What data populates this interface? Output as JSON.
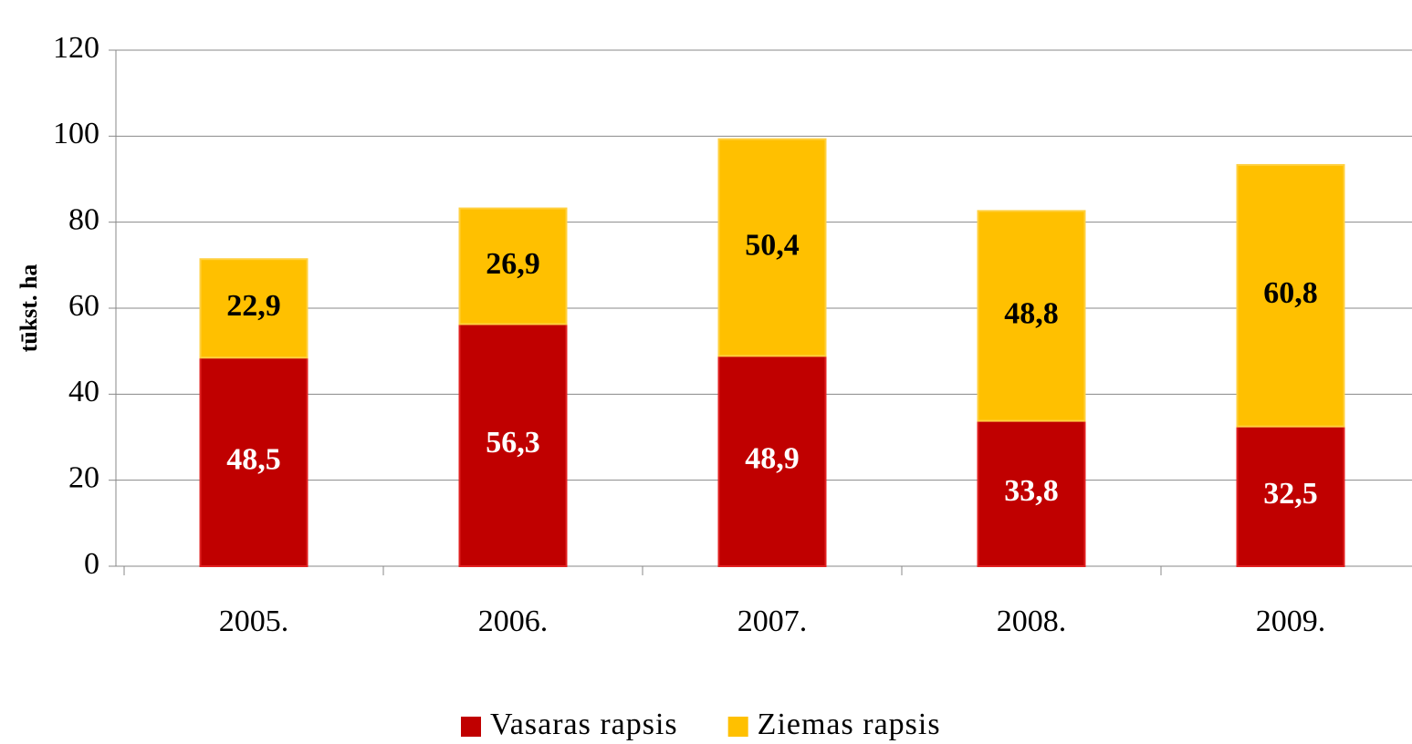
{
  "chart_data": {
    "type": "stacked-bar",
    "y_label": "tūkst. ha",
    "categories": [
      "2005.",
      "2006.",
      "2007.",
      "2008.",
      "2009."
    ],
    "series": [
      {
        "name": "Vasaras rapsis",
        "color": "#c00000",
        "values": [
          48.5,
          56.3,
          48.9,
          33.8,
          32.5
        ],
        "value_labels": [
          "48,5",
          "56,3",
          "48,9",
          "33,8",
          "32,5"
        ]
      },
      {
        "name": "Ziemas rapsis",
        "color": "#ffc000",
        "values": [
          22.9,
          26.9,
          50.4,
          48.8,
          60.8
        ],
        "value_labels": [
          "22,9",
          "26,9",
          "50,4",
          "48,8",
          "60,8"
        ]
      }
    ],
    "ylim": [
      0,
      120
    ],
    "yticks": [
      0,
      20,
      40,
      60,
      80,
      100,
      120
    ],
    "grid": true,
    "legend": "bottom"
  }
}
